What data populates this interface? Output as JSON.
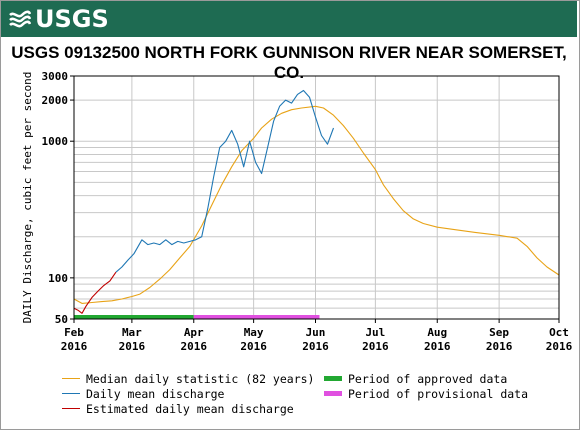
{
  "header": {
    "logo_text": "USGS",
    "logo_icon": "usgs-wave-icon",
    "banner_color": "#1e6b52"
  },
  "chart_data": {
    "type": "line",
    "title": "USGS 09132500 NORTH FORK GUNNISON RIVER NEAR SOMERSET, CO.",
    "ylabel": "DAILY Discharge, cubic feet per second",
    "xlabel": "",
    "y_scale": "log",
    "ylim": [
      50,
      3000
    ],
    "y_ticks": [
      {
        "value": 50,
        "label": "50"
      },
      {
        "value": 100,
        "label": "100"
      },
      {
        "value": 1000,
        "label": "1000"
      },
      {
        "value": 2000,
        "label": "2000"
      },
      {
        "value": 3000,
        "label": "3000"
      }
    ],
    "xlim": [
      "2016-02-01",
      "2016-10-01"
    ],
    "x_ticks": [
      {
        "date": "2016-02-01",
        "month": "Feb",
        "year": "2016"
      },
      {
        "date": "2016-03-01",
        "month": "Mar",
        "year": "2016"
      },
      {
        "date": "2016-04-01",
        "month": "Apr",
        "year": "2016"
      },
      {
        "date": "2016-05-01",
        "month": "May",
        "year": "2016"
      },
      {
        "date": "2016-06-01",
        "month": "Jun",
        "year": "2016"
      },
      {
        "date": "2016-07-01",
        "month": "Jul",
        "year": "2016"
      },
      {
        "date": "2016-08-01",
        "month": "Aug",
        "year": "2016"
      },
      {
        "date": "2016-09-01",
        "month": "Sep",
        "year": "2016"
      },
      {
        "date": "2016-10-01",
        "month": "Oct",
        "year": "2016"
      }
    ],
    "grid": true,
    "series": [
      {
        "name": "Median daily statistic (82 years)",
        "color": "#e8a317",
        "points": [
          [
            "2016-02-01",
            70
          ],
          [
            "2016-02-05",
            65
          ],
          [
            "2016-02-10",
            66
          ],
          [
            "2016-02-15",
            67
          ],
          [
            "2016-02-20",
            68
          ],
          [
            "2016-02-25",
            70
          ],
          [
            "2016-03-01",
            73
          ],
          [
            "2016-03-05",
            76
          ],
          [
            "2016-03-10",
            85
          ],
          [
            "2016-03-15",
            98
          ],
          [
            "2016-03-20",
            115
          ],
          [
            "2016-03-25",
            140
          ],
          [
            "2016-03-30",
            170
          ],
          [
            "2016-04-05",
            240
          ],
          [
            "2016-04-10",
            340
          ],
          [
            "2016-04-15",
            480
          ],
          [
            "2016-04-20",
            650
          ],
          [
            "2016-04-25",
            850
          ],
          [
            "2016-05-01",
            1050
          ],
          [
            "2016-05-05",
            1250
          ],
          [
            "2016-05-10",
            1450
          ],
          [
            "2016-05-15",
            1600
          ],
          [
            "2016-05-20",
            1700
          ],
          [
            "2016-05-25",
            1750
          ],
          [
            "2016-06-01",
            1800
          ],
          [
            "2016-06-05",
            1750
          ],
          [
            "2016-06-10",
            1550
          ],
          [
            "2016-06-15",
            1300
          ],
          [
            "2016-06-20",
            1050
          ],
          [
            "2016-06-25",
            820
          ],
          [
            "2016-07-01",
            620
          ],
          [
            "2016-07-05",
            480
          ],
          [
            "2016-07-10",
            380
          ],
          [
            "2016-07-15",
            310
          ],
          [
            "2016-07-20",
            270
          ],
          [
            "2016-07-25",
            250
          ],
          [
            "2016-08-01",
            235
          ],
          [
            "2016-08-10",
            225
          ],
          [
            "2016-08-20",
            215
          ],
          [
            "2016-09-01",
            205
          ],
          [
            "2016-09-10",
            195
          ],
          [
            "2016-09-15",
            170
          ],
          [
            "2016-09-20",
            140
          ],
          [
            "2016-09-25",
            120
          ],
          [
            "2016-10-01",
            105
          ]
        ]
      },
      {
        "name": "Daily mean discharge",
        "color": "#1f77b4",
        "points": [
          [
            "2016-02-22",
            110
          ],
          [
            "2016-02-25",
            120
          ],
          [
            "2016-02-28",
            135
          ],
          [
            "2016-03-02",
            150
          ],
          [
            "2016-03-06",
            190
          ],
          [
            "2016-03-09",
            175
          ],
          [
            "2016-03-12",
            180
          ],
          [
            "2016-03-15",
            175
          ],
          [
            "2016-03-18",
            190
          ],
          [
            "2016-03-21",
            175
          ],
          [
            "2016-03-24",
            185
          ],
          [
            "2016-03-27",
            180
          ],
          [
            "2016-03-30",
            185
          ],
          [
            "2016-04-02",
            190
          ],
          [
            "2016-04-05",
            200
          ],
          [
            "2016-04-08",
            320
          ],
          [
            "2016-04-11",
            550
          ],
          [
            "2016-04-14",
            900
          ],
          [
            "2016-04-17",
            1000
          ],
          [
            "2016-04-20",
            1200
          ],
          [
            "2016-04-23",
            950
          ],
          [
            "2016-04-26",
            650
          ],
          [
            "2016-04-29",
            1000
          ],
          [
            "2016-05-02",
            700
          ],
          [
            "2016-05-05",
            580
          ],
          [
            "2016-05-08",
            900
          ],
          [
            "2016-05-11",
            1400
          ],
          [
            "2016-05-14",
            1800
          ],
          [
            "2016-05-17",
            2000
          ],
          [
            "2016-05-20",
            1900
          ],
          [
            "2016-05-23",
            2200
          ],
          [
            "2016-05-26",
            2350
          ],
          [
            "2016-05-29",
            2100
          ],
          [
            "2016-06-01",
            1500
          ],
          [
            "2016-06-04",
            1100
          ],
          [
            "2016-06-07",
            950
          ],
          [
            "2016-06-10",
            1250
          ]
        ]
      },
      {
        "name": "Estimated daily mean discharge",
        "color": "#c00000",
        "points": [
          [
            "2016-02-01",
            60
          ],
          [
            "2016-02-03",
            58
          ],
          [
            "2016-02-05",
            55
          ],
          [
            "2016-02-07",
            62
          ],
          [
            "2016-02-10",
            72
          ],
          [
            "2016-02-13",
            80
          ],
          [
            "2016-02-16",
            88
          ],
          [
            "2016-02-19",
            95
          ],
          [
            "2016-02-22",
            110
          ]
        ]
      }
    ],
    "periods": [
      {
        "name": "Period of approved data",
        "color": "#22a832",
        "start": "2016-02-01",
        "end": "2016-04-01"
      },
      {
        "name": "Period of provisional data",
        "color": "#e050e0",
        "start": "2016-04-01",
        "end": "2016-06-03"
      }
    ]
  }
}
